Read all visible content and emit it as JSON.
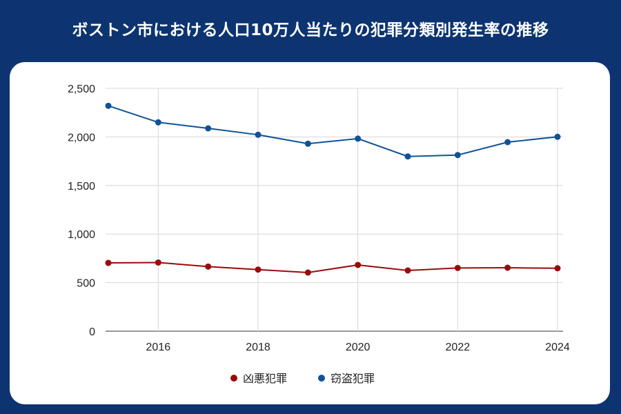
{
  "title": "ボストン市における人口10万人当たりの犯罪分類別発生率の推移",
  "chart_data": {
    "type": "line",
    "title": "",
    "xlabel": "",
    "ylabel": "",
    "x": [
      2015,
      2016,
      2017,
      2018,
      2019,
      2020,
      2021,
      2022,
      2023,
      2024
    ],
    "xlim": [
      2015,
      2024
    ],
    "ylim": [
      0,
      2500
    ],
    "x_tick_labels": [
      "2016",
      "2018",
      "2020",
      "2022",
      "2024"
    ],
    "y_tick_labels": [
      "0",
      "500",
      "1,000",
      "1,500",
      "2,000",
      "2,500"
    ],
    "grid": true,
    "legend_position": "bottom",
    "series": [
      {
        "name": "凶悪犯罪",
        "color": "#9b0a0a",
        "values": [
          703,
          707,
          665,
          634,
          604,
          682,
          625,
          651,
          653,
          648
        ]
      },
      {
        "name": "窃盗犯罪",
        "color": "#0f5296",
        "values": [
          2320,
          2150,
          2088,
          2022,
          1930,
          1982,
          1799,
          1813,
          1946,
          2001
        ]
      }
    ]
  }
}
